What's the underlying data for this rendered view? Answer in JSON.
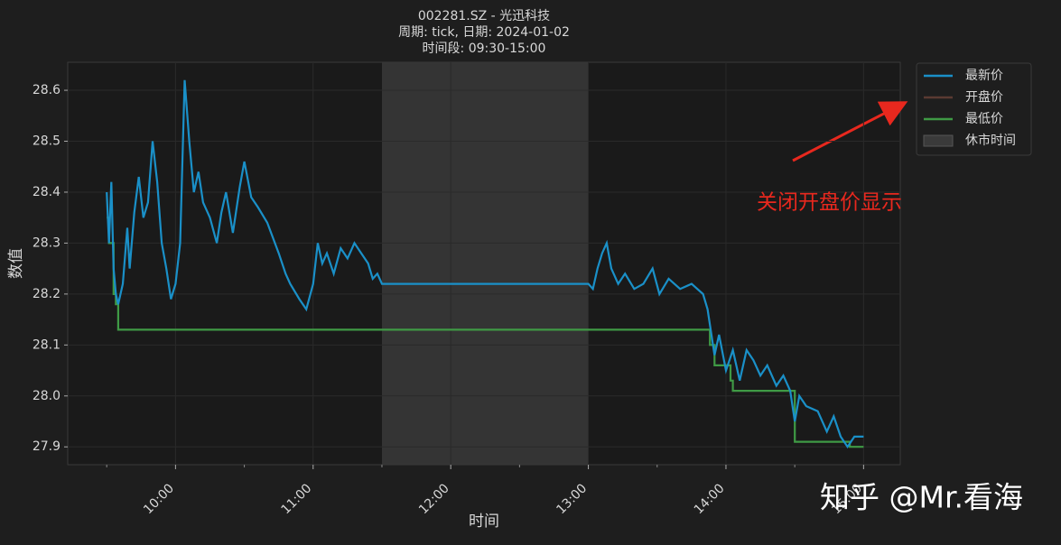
{
  "chart_data": {
    "type": "line",
    "title": [
      "002281.SZ - 光迅科技",
      "周期: tick, 日期: 2024-01-02",
      "时间段: 09:30-15:00"
    ],
    "xlabel": "时间",
    "ylabel": "数值",
    "xlim": [
      "09:13",
      "15:16"
    ],
    "xticks": [
      "10:00",
      "11:00",
      "12:00",
      "13:00",
      "14:00",
      "15:00"
    ],
    "xminor_ticks": [
      "09:30",
      "10:30",
      "11:30",
      "12:30",
      "13:30",
      "14:30"
    ],
    "ylim": [
      27.865,
      28.655
    ],
    "yticks": [
      27.9,
      {
        "value": 28,
        "label": "28.0"
      },
      28.1,
      28.2,
      28.3,
      28.4,
      28.5,
      28.6
    ],
    "break_span": [
      "11:30",
      "13:00"
    ],
    "break_label": "休市时间",
    "break_color": "#3a3a3a",
    "series": [
      {
        "name": "最新价",
        "color": "#1a90c8",
        "x": [
          "09:30",
          "09:31",
          "09:32",
          "09:33",
          "09:34",
          "09:35",
          "09:37",
          "09:39",
          "09:40",
          "09:42",
          "09:44",
          "09:46",
          "09:48",
          "09:50",
          "09:52",
          "09:54",
          "09:56",
          "09:58",
          "10:00",
          "10:02",
          "10:04",
          "10:06",
          "10:08",
          "10:10",
          "10:12",
          "10:15",
          "10:18",
          "10:20",
          "10:22",
          "10:25",
          "10:28",
          "10:30",
          "10:33",
          "10:36",
          "10:40",
          "10:45",
          "10:48",
          "10:50",
          "10:54",
          "10:57",
          "11:00",
          "11:02",
          "11:04",
          "11:06",
          "11:09",
          "11:12",
          "11:15",
          "11:18",
          "11:21",
          "11:24",
          "11:26",
          "11:28",
          "11:30",
          "13:00",
          "13:02",
          "13:04",
          "13:06",
          "13:08",
          "13:10",
          "13:13",
          "13:16",
          "13:20",
          "13:24",
          "13:28",
          "13:31",
          "13:35",
          "13:40",
          "13:45",
          "13:50",
          "13:52",
          "13:55",
          "13:57",
          "14:00",
          "14:03",
          "14:06",
          "14:09",
          "14:12",
          "14:15",
          "14:18",
          "14:22",
          "14:25",
          "14:28",
          "14:30",
          "14:32",
          "14:35",
          "14:40",
          "14:44",
          "14:47",
          "14:50",
          "14:53",
          "14:56",
          "15:00"
        ],
        "values": [
          28.4,
          28.3,
          28.42,
          28.25,
          28.2,
          28.18,
          28.22,
          28.33,
          28.25,
          28.36,
          28.43,
          28.35,
          28.38,
          28.5,
          28.42,
          28.3,
          28.25,
          28.19,
          28.22,
          28.3,
          28.62,
          28.5,
          28.4,
          28.44,
          28.38,
          28.35,
          28.3,
          28.36,
          28.4,
          28.32,
          28.41,
          28.46,
          28.39,
          28.37,
          28.34,
          28.28,
          28.24,
          28.22,
          28.19,
          28.17,
          28.22,
          28.3,
          28.26,
          28.28,
          28.24,
          28.29,
          28.27,
          28.3,
          28.28,
          28.26,
          28.23,
          28.24,
          28.22,
          28.22,
          28.21,
          28.25,
          28.28,
          28.3,
          28.25,
          28.22,
          28.24,
          28.21,
          28.22,
          28.25,
          28.2,
          28.23,
          28.21,
          28.22,
          28.2,
          28.17,
          28.08,
          28.12,
          28.05,
          28.09,
          28.03,
          28.09,
          28.07,
          28.04,
          28.06,
          28.02,
          28.04,
          28.01,
          27.95,
          28.0,
          27.98,
          27.97,
          27.93,
          27.96,
          27.92,
          27.9,
          27.92,
          27.92
        ]
      },
      {
        "name": "开盘价",
        "color": "#5a3a32",
        "visible": false
      },
      {
        "name": "最低价",
        "color": "#3f9a45",
        "x": [
          "09:30",
          "09:31",
          "09:31",
          "09:33",
          "09:33",
          "09:34",
          "09:34",
          "09:35",
          "09:35",
          "13:53",
          "13:53",
          "13:55",
          "13:55",
          "14:02",
          "14:02",
          "14:03",
          "14:03",
          "14:30",
          "14:30",
          "14:54",
          "14:54",
          "15:00"
        ],
        "values": [
          28.35,
          28.35,
          28.3,
          28.3,
          28.2,
          28.2,
          28.18,
          28.18,
          28.13,
          28.13,
          28.1,
          28.1,
          28.06,
          28.06,
          28.03,
          28.03,
          28.01,
          28.01,
          27.91,
          27.91,
          27.9,
          27.9
        ]
      }
    ],
    "legend": "outside-upper-right",
    "annotation": {
      "text": "关闭开盘价显示",
      "color": "#e8281e"
    },
    "watermark": "知乎 @Mr.看海"
  }
}
